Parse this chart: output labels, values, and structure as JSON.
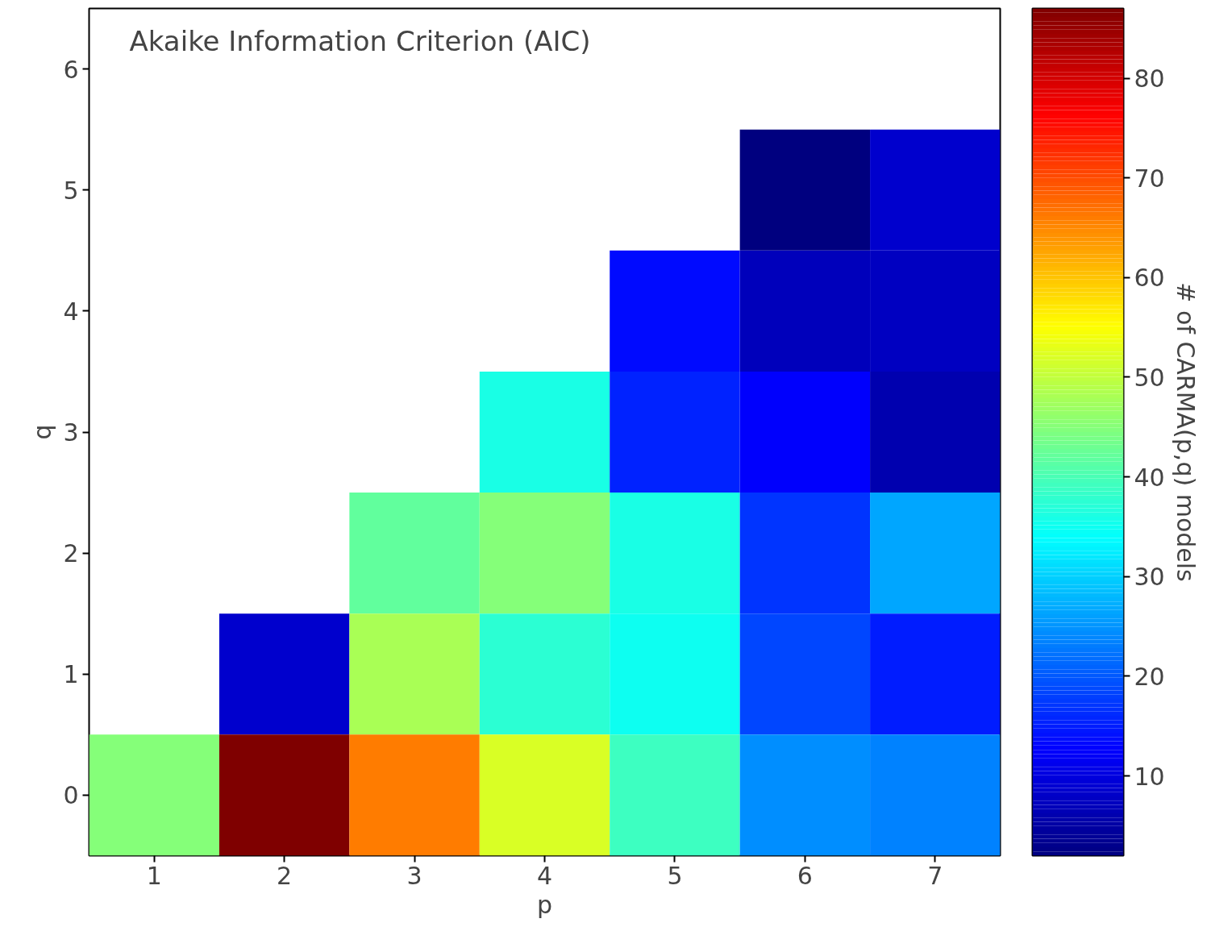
{
  "chart_data": {
    "type": "heatmap",
    "title": "Akaike Information Criterion (AIC)",
    "xlabel": "p",
    "ylabel": "q",
    "clabel": "# of CARMA(p,q) models",
    "categories": [
      "1",
      "2",
      "3",
      "4",
      "5",
      "6",
      "7"
    ],
    "y_categories": [
      "6",
      "5",
      "4",
      "3",
      "2",
      "1",
      "0"
    ],
    "cells": [
      [
        null,
        null,
        null,
        null,
        null,
        null,
        null
      ],
      [
        null,
        null,
        null,
        null,
        null,
        2,
        8.5
      ],
      [
        null,
        null,
        null,
        null,
        13.5,
        7,
        7.5
      ],
      [
        null,
        null,
        null,
        36,
        15.5,
        12.5,
        6
      ],
      [
        null,
        null,
        42,
        45,
        36,
        17,
        26.5
      ],
      [
        null,
        8.5,
        48,
        37.5,
        35,
        18.5,
        15
      ],
      [
        45,
        87,
        66,
        52,
        39,
        24.5,
        23.5
      ]
    ],
    "clim": [
      2,
      87
    ],
    "cticks": [
      10,
      20,
      30,
      40,
      50,
      60,
      70,
      80
    ]
  }
}
